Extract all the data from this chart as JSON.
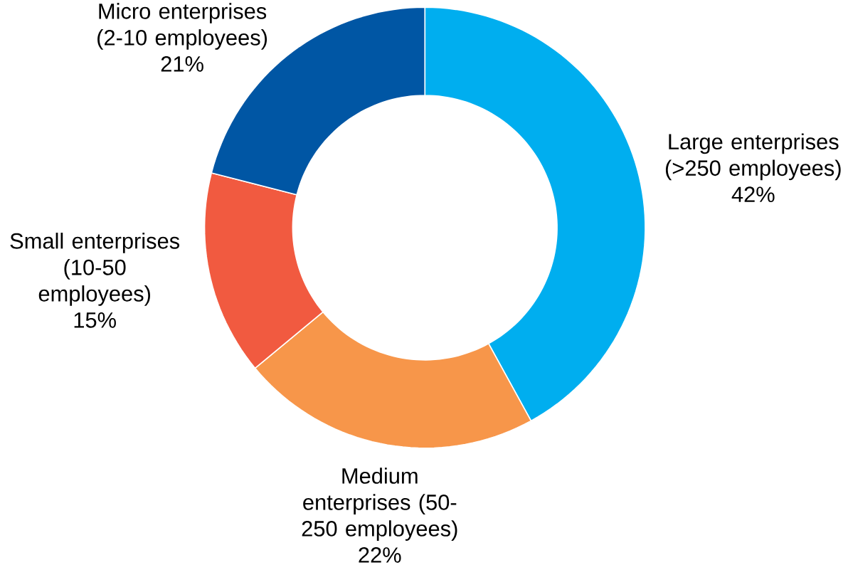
{
  "chart_data": {
    "type": "donut",
    "categories": [
      "Large enterprises (>250 employees)",
      "Medium enterprises (50-250 employees)",
      "Small enterprises (10-50 employees)",
      "Micro enterprises (2-10 employees)"
    ],
    "values": [
      42,
      22,
      15,
      21
    ],
    "colors": [
      "#00aeef",
      "#f7964a",
      "#f15a40",
      "#0056a4"
    ],
    "value_labels": [
      "42%",
      "22%",
      "15%",
      "21%"
    ]
  }
}
